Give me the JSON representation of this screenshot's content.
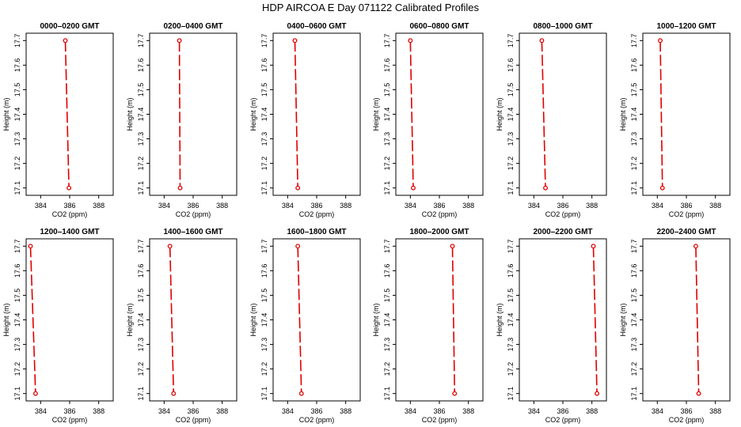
{
  "figure": {
    "title": "HDP  AIRCOA E  Day 071122  Calibrated Profiles"
  },
  "chart_data": [
    {
      "type": "line",
      "title": "0000–0200 GMT",
      "xlabel": "CO2 (ppm)",
      "ylabel": "Height (m)",
      "xlim": [
        383,
        389
      ],
      "ylim": [
        17.07,
        17.73
      ],
      "xticks": [
        384,
        386,
        388
      ],
      "yticks": [
        17.1,
        17.2,
        17.3,
        17.4,
        17.5,
        17.6,
        17.7
      ],
      "x": [
        385.7,
        385.95
      ],
      "y": [
        17.7,
        17.1
      ],
      "line_style": "dashed",
      "color": "#e00000"
    },
    {
      "type": "line",
      "title": "0200–0400 GMT",
      "xlabel": "CO2 (ppm)",
      "ylabel": "Height (m)",
      "xlim": [
        383,
        389
      ],
      "ylim": [
        17.07,
        17.73
      ],
      "xticks": [
        384,
        386,
        388
      ],
      "yticks": [
        17.1,
        17.2,
        17.3,
        17.4,
        17.5,
        17.6,
        17.7
      ],
      "x": [
        385.05,
        385.1
      ],
      "y": [
        17.7,
        17.1
      ],
      "line_style": "dashed",
      "color": "#e00000"
    },
    {
      "type": "line",
      "title": "0400–0600 GMT",
      "xlabel": "CO2 (ppm)",
      "ylabel": "Height (m)",
      "xlim": [
        383,
        389
      ],
      "ylim": [
        17.07,
        17.73
      ],
      "xticks": [
        384,
        386,
        388
      ],
      "yticks": [
        17.1,
        17.2,
        17.3,
        17.4,
        17.5,
        17.6,
        17.7
      ],
      "x": [
        384.5,
        384.7
      ],
      "y": [
        17.7,
        17.1
      ],
      "line_style": "dashed",
      "color": "#e00000"
    },
    {
      "type": "line",
      "title": "0600–0800 GMT",
      "xlabel": "CO2 (ppm)",
      "ylabel": "Height (m)",
      "xlim": [
        383,
        389
      ],
      "ylim": [
        17.07,
        17.73
      ],
      "xticks": [
        384,
        386,
        388
      ],
      "yticks": [
        17.1,
        17.2,
        17.3,
        17.4,
        17.5,
        17.6,
        17.7
      ],
      "x": [
        384.0,
        384.2
      ],
      "y": [
        17.7,
        17.1
      ],
      "line_style": "dashed",
      "color": "#e00000"
    },
    {
      "type": "line",
      "title": "0800–1000 GMT",
      "xlabel": "CO2 (ppm)",
      "ylabel": "Height (m)",
      "xlim": [
        383,
        389
      ],
      "ylim": [
        17.07,
        17.73
      ],
      "xticks": [
        384,
        386,
        388
      ],
      "yticks": [
        17.1,
        17.2,
        17.3,
        17.4,
        17.5,
        17.6,
        17.7
      ],
      "x": [
        384.55,
        384.8
      ],
      "y": [
        17.7,
        17.1
      ],
      "line_style": "dashed",
      "color": "#e00000"
    },
    {
      "type": "line",
      "title": "1000–1200 GMT",
      "xlabel": "CO2 (ppm)",
      "ylabel": "Height (m)",
      "xlim": [
        383,
        389
      ],
      "ylim": [
        17.07,
        17.73
      ],
      "xticks": [
        384,
        386,
        388
      ],
      "yticks": [
        17.1,
        17.2,
        17.3,
        17.4,
        17.5,
        17.6,
        17.7
      ],
      "x": [
        384.2,
        384.35
      ],
      "y": [
        17.7,
        17.1
      ],
      "line_style": "dashed",
      "color": "#e00000"
    },
    {
      "type": "line",
      "title": "1200–1400 GMT",
      "xlabel": "CO2 (ppm)",
      "ylabel": "Height (m)",
      "xlim": [
        383,
        389
      ],
      "ylim": [
        17.07,
        17.73
      ],
      "xticks": [
        384,
        386,
        388
      ],
      "yticks": [
        17.1,
        17.2,
        17.3,
        17.4,
        17.5,
        17.6,
        17.7
      ],
      "x": [
        383.3,
        383.65
      ],
      "y": [
        17.7,
        17.1
      ],
      "line_style": "dashed",
      "color": "#e00000"
    },
    {
      "type": "line",
      "title": "1400–1600 GMT",
      "xlabel": "CO2 (ppm)",
      "ylabel": "Height (m)",
      "xlim": [
        383,
        389
      ],
      "ylim": [
        17.07,
        17.73
      ],
      "xticks": [
        384,
        386,
        388
      ],
      "yticks": [
        17.1,
        17.2,
        17.3,
        17.4,
        17.5,
        17.6,
        17.7
      ],
      "x": [
        384.4,
        384.65
      ],
      "y": [
        17.7,
        17.1
      ],
      "line_style": "dashed",
      "color": "#e00000"
    },
    {
      "type": "line",
      "title": "1600–1800 GMT",
      "xlabel": "CO2 (ppm)",
      "ylabel": "Height (m)",
      "xlim": [
        383,
        389
      ],
      "ylim": [
        17.07,
        17.73
      ],
      "xticks": [
        384,
        386,
        388
      ],
      "yticks": [
        17.1,
        17.2,
        17.3,
        17.4,
        17.5,
        17.6,
        17.7
      ],
      "x": [
        384.7,
        384.95
      ],
      "y": [
        17.7,
        17.1
      ],
      "line_style": "dashed",
      "color": "#e00000"
    },
    {
      "type": "line",
      "title": "1800–2000 GMT",
      "xlabel": "CO2 (ppm)",
      "ylabel": "Height (m)",
      "xlim": [
        383,
        389
      ],
      "ylim": [
        17.07,
        17.73
      ],
      "xticks": [
        384,
        386,
        388
      ],
      "yticks": [
        17.1,
        17.2,
        17.3,
        17.4,
        17.5,
        17.6,
        17.7
      ],
      "x": [
        386.9,
        387.05
      ],
      "y": [
        17.7,
        17.1
      ],
      "line_style": "dashed",
      "color": "#e00000"
    },
    {
      "type": "line",
      "title": "2000–2200 GMT",
      "xlabel": "CO2 (ppm)",
      "ylabel": "Height (m)",
      "xlim": [
        383,
        389
      ],
      "ylim": [
        17.07,
        17.73
      ],
      "xticks": [
        384,
        386,
        388
      ],
      "yticks": [
        17.1,
        17.2,
        17.3,
        17.4,
        17.5,
        17.6,
        17.7
      ],
      "x": [
        388.1,
        388.35
      ],
      "y": [
        17.7,
        17.1
      ],
      "line_style": "dashed",
      "color": "#e00000"
    },
    {
      "type": "line",
      "title": "2200–2400 GMT",
      "xlabel": "CO2 (ppm)",
      "ylabel": "Height (m)",
      "xlim": [
        383,
        389
      ],
      "ylim": [
        17.07,
        17.73
      ],
      "xticks": [
        384,
        386,
        388
      ],
      "yticks": [
        17.1,
        17.2,
        17.3,
        17.4,
        17.5,
        17.6,
        17.7
      ],
      "x": [
        386.65,
        386.85
      ],
      "y": [
        17.7,
        17.1
      ],
      "line_style": "dashed",
      "color": "#e00000"
    }
  ]
}
